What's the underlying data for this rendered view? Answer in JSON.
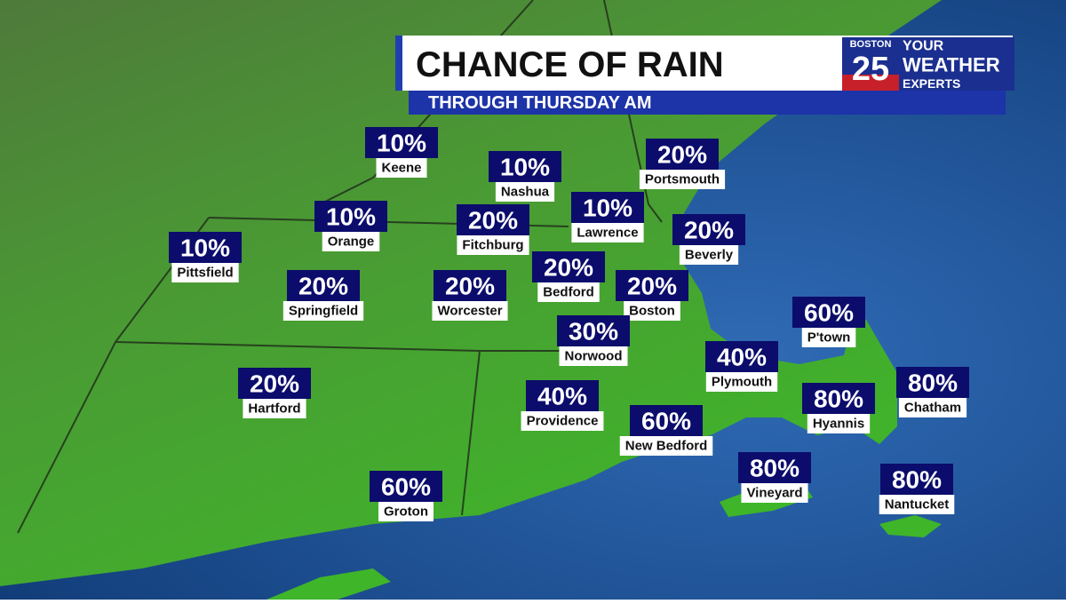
{
  "header": {
    "title": "CHANCE OF RAIN",
    "subtitle": "THROUGH THURSDAY AM"
  },
  "logo": {
    "city": "BOSTON",
    "channel": "25",
    "line1": "YOUR",
    "line2": "WEATHER",
    "line3": "EXPERTS"
  },
  "locations": [
    {
      "name": "Keene",
      "value": "10%"
    },
    {
      "name": "Nashua",
      "value": "10%"
    },
    {
      "name": "Portsmouth",
      "value": "20%"
    },
    {
      "name": "Orange",
      "value": "10%"
    },
    {
      "name": "Fitchburg",
      "value": "20%"
    },
    {
      "name": "Lawrence",
      "value": "10%"
    },
    {
      "name": "Beverly",
      "value": "20%"
    },
    {
      "name": "Pittsfield",
      "value": "10%"
    },
    {
      "name": "Springfield",
      "value": "20%"
    },
    {
      "name": "Worcester",
      "value": "20%"
    },
    {
      "name": "Bedford",
      "value": "20%"
    },
    {
      "name": "Boston",
      "value": "20%"
    },
    {
      "name": "P'town",
      "value": "60%"
    },
    {
      "name": "Norwood",
      "value": "30%"
    },
    {
      "name": "Plymouth",
      "value": "40%"
    },
    {
      "name": "Hartford",
      "value": "20%"
    },
    {
      "name": "Providence",
      "value": "40%"
    },
    {
      "name": "New Bedford",
      "value": "60%"
    },
    {
      "name": "Hyannis",
      "value": "80%"
    },
    {
      "name": "Chatham",
      "value": "80%"
    },
    {
      "name": "Vineyard",
      "value": "80%"
    },
    {
      "name": "Groton",
      "value": "60%"
    },
    {
      "name": "Nantucket",
      "value": "80%"
    }
  ]
}
